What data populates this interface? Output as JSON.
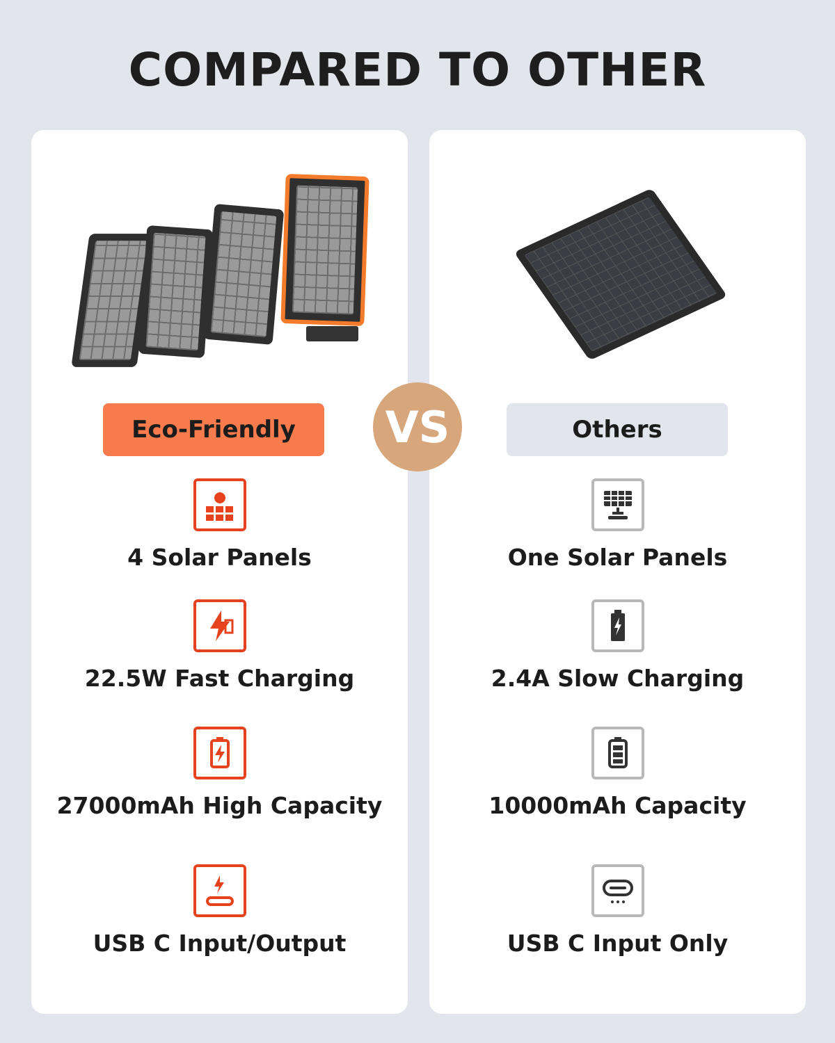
{
  "title": "COMPARED TO OTHER",
  "vs": "VS",
  "colors": {
    "accent": "#f77b4d",
    "icon_accent": "#e5421d",
    "vs_circle": "#d8a67b",
    "background": "#e3e5ed"
  },
  "left": {
    "badge": "Eco-Friendly",
    "features": [
      {
        "icon": "solar-panel-sun-icon",
        "label": "4 Solar Panels"
      },
      {
        "icon": "fast-charging-icon",
        "label": "22.5W Fast Charging"
      },
      {
        "icon": "battery-bolt-icon",
        "label": "27000mAh High Capacity"
      },
      {
        "icon": "usb-c-bolt-icon",
        "label": "USB C Input/Output"
      }
    ]
  },
  "right": {
    "badge": "Others",
    "features": [
      {
        "icon": "solar-panel-icon",
        "label": "One Solar Panels"
      },
      {
        "icon": "battery-bolt-icon",
        "label": "2.4A Slow Charging"
      },
      {
        "icon": "battery-icon",
        "label": "10000mAh Capacity"
      },
      {
        "icon": "usb-c-port-icon",
        "label": "USB C Input Only"
      }
    ]
  }
}
